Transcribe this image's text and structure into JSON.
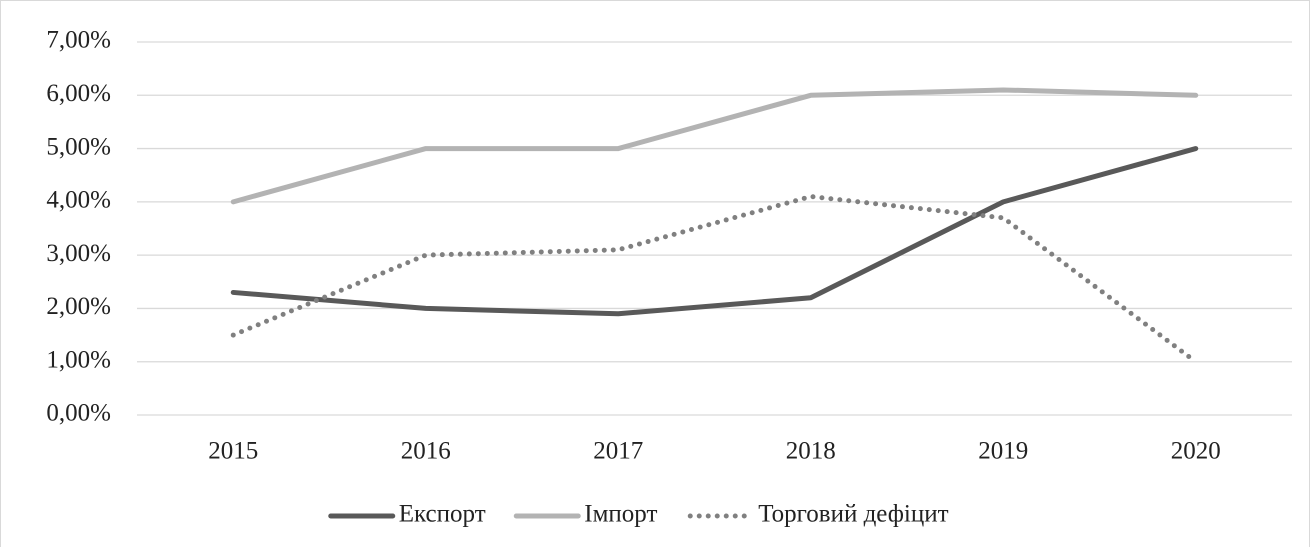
{
  "chart_data": {
    "type": "line",
    "categories": [
      "2015",
      "2016",
      "2017",
      "2018",
      "2019",
      "2020"
    ],
    "series": [
      {
        "name": "Експорт",
        "color": "#595959",
        "style": "solid",
        "values": [
          2.3,
          2.0,
          1.9,
          2.2,
          4.0,
          5.0
        ]
      },
      {
        "name": "Імпорт",
        "color": "#b3b3b3",
        "style": "solid",
        "values": [
          4.0,
          5.0,
          5.0,
          6.0,
          6.1,
          6.0
        ]
      },
      {
        "name": "Торговий дефіцит",
        "color": "#808080",
        "style": "dotted",
        "values": [
          1.5,
          3.0,
          3.1,
          4.1,
          3.7,
          1.0
        ]
      }
    ],
    "ylim": [
      0,
      7
    ],
    "yticks": [
      {
        "value": 0,
        "label": "0,00%"
      },
      {
        "value": 1,
        "label": "1,00%"
      },
      {
        "value": 2,
        "label": "2,00%"
      },
      {
        "value": 3,
        "label": "3,00%"
      },
      {
        "value": 4,
        "label": "4,00%"
      },
      {
        "value": 5,
        "label": "5,00%"
      },
      {
        "value": 6,
        "label": "6,00%"
      },
      {
        "value": 7,
        "label": "7,00%"
      }
    ],
    "grid": true,
    "legend": "bottom"
  }
}
